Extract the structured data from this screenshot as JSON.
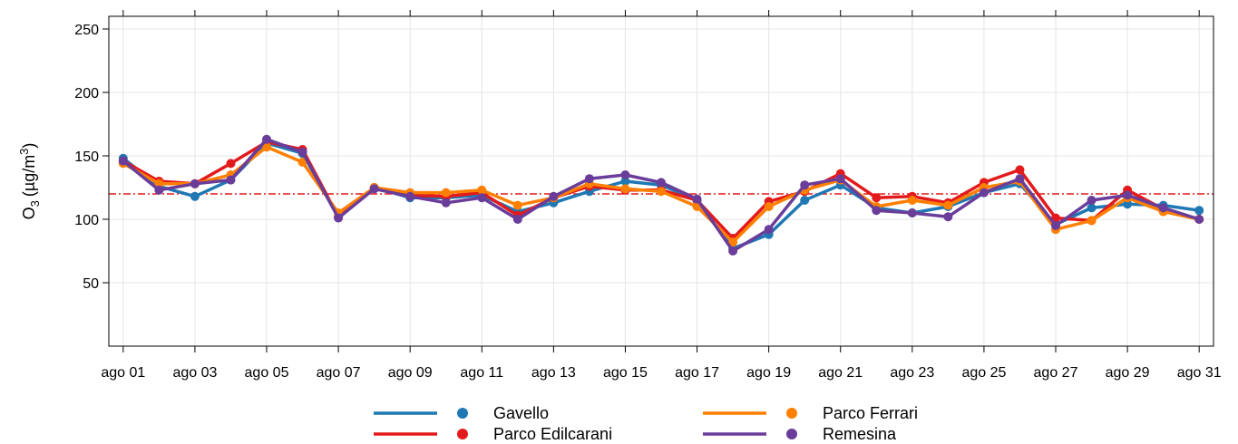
{
  "chart_data": {
    "type": "line",
    "ylabel_main": "O",
    "ylabel_sub": "3",
    "ylabel_unit": "(µg/m",
    "ylabel_sup": "3",
    "ylabel_close": ")",
    "ylim": [
      0,
      260
    ],
    "yticks": [
      50,
      100,
      150,
      200,
      250
    ],
    "xlim": [
      0.6,
      31.4
    ],
    "xticks": [
      {
        "day": 1,
        "label": "ago 01"
      },
      {
        "day": 3,
        "label": "ago 03"
      },
      {
        "day": 5,
        "label": "ago 05"
      },
      {
        "day": 7,
        "label": "ago 07"
      },
      {
        "day": 9,
        "label": "ago 09"
      },
      {
        "day": 11,
        "label": "ago 11"
      },
      {
        "day": 13,
        "label": "ago 13"
      },
      {
        "day": 15,
        "label": "ago 15"
      },
      {
        "day": 17,
        "label": "ago 17"
      },
      {
        "day": 19,
        "label": "ago 19"
      },
      {
        "day": 21,
        "label": "ago 21"
      },
      {
        "day": 23,
        "label": "ago 23"
      },
      {
        "day": 25,
        "label": "ago 25"
      },
      {
        "day": 27,
        "label": "ago 27"
      },
      {
        "day": 29,
        "label": "ago 29"
      },
      {
        "day": 31,
        "label": "ago 31"
      }
    ],
    "threshold": {
      "value": 120,
      "color": "#e31a1c"
    },
    "grid": true,
    "legend_position": "bottom",
    "x": [
      1,
      2,
      3,
      4,
      5,
      6,
      7,
      8,
      9,
      10,
      11,
      12,
      13,
      14,
      15,
      16,
      17,
      18,
      19,
      20,
      21,
      22,
      23,
      24,
      25,
      26,
      27,
      28,
      29,
      30,
      31
    ],
    "series": [
      {
        "name": "Gavello",
        "color": "#1f78b4",
        "values": [
          148,
          126,
          118,
          131,
          160,
          152,
          102,
          125,
          117,
          117,
          119,
          106,
          113,
          122,
          130,
          127,
          115,
          77,
          88,
          115,
          127,
          109,
          105,
          110,
          121,
          128,
          96,
          109,
          112,
          111,
          107
        ]
      },
      {
        "name": "Parco Edilcarani",
        "color": "#e31a1c",
        "values": [
          146,
          130,
          128,
          144,
          161,
          155,
          102,
          125,
          119,
          118,
          121,
          103,
          117,
          126,
          123,
          123,
          115,
          85,
          114,
          122,
          136,
          117,
          118,
          113,
          129,
          139,
          101,
          99,
          123,
          108,
          100
        ]
      },
      {
        "name": "Parco Ferrari",
        "color": "#ff7f00",
        "values": [
          144,
          128,
          128,
          135,
          157,
          145,
          105,
          125,
          121,
          121,
          123,
          111,
          117,
          128,
          124,
          122,
          110,
          82,
          110,
          123,
          131,
          110,
          115,
          111,
          125,
          130,
          92,
          99,
          117,
          106,
          100
        ]
      },
      {
        "name": "Remesina",
        "color": "#6a3d9a",
        "values": [
          146,
          123,
          128,
          131,
          163,
          153,
          101,
          124,
          118,
          113,
          117,
          100,
          118,
          132,
          135,
          129,
          116,
          75,
          92,
          127,
          132,
          107,
          105,
          102,
          121,
          132,
          95,
          115,
          119,
          109,
          100
        ]
      }
    ]
  }
}
